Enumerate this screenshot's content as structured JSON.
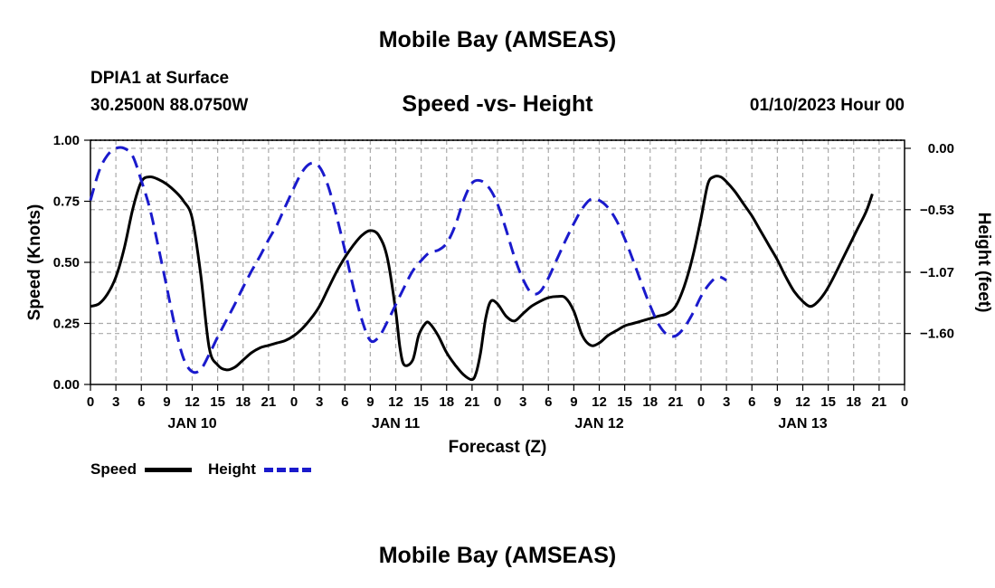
{
  "header": {
    "title": "Mobile Bay (AMSEAS)",
    "station": "DPIA1 at Surface",
    "coords": "30.2500N  88.0750W",
    "subtitle": "Speed -vs- Height",
    "date": "01/10/2023 Hour 00"
  },
  "footer": {
    "title": "Mobile Bay (AMSEAS)"
  },
  "legend": {
    "speed_label": "Speed",
    "height_label": "Height"
  },
  "colors": {
    "speed": "#000000",
    "height": "#1a1acc",
    "grid": "#aaaaaa"
  },
  "chart_data": {
    "type": "line",
    "title": "Speed -vs- Height",
    "xlabel": "Forecast (Z)",
    "ylabel": "Speed (Knots)",
    "y2label": "Height (feet)",
    "x_unit": "hours from 01/10/2023 00Z",
    "xlim": [
      0,
      96
    ],
    "ylim": [
      0,
      1.0
    ],
    "y2lim": [
      -2.04,
      0.07
    ],
    "x_ticks": [
      0,
      3,
      6,
      9,
      12,
      15,
      18,
      21,
      24,
      27,
      30,
      33,
      36,
      39,
      42,
      45,
      48,
      51,
      54,
      57,
      60,
      63,
      66,
      69,
      72,
      75,
      78,
      81,
      84,
      87,
      90,
      93,
      96
    ],
    "x_tick_labels": [
      "0",
      "3",
      "6",
      "9",
      "12",
      "15",
      "18",
      "21",
      "0",
      "3",
      "6",
      "9",
      "12",
      "15",
      "18",
      "21",
      "0",
      "3",
      "6",
      "9",
      "12",
      "15",
      "18",
      "21",
      "0",
      "3",
      "6",
      "9",
      "12",
      "15",
      "18",
      "21",
      "0"
    ],
    "day_labels": [
      {
        "label": "JAN 10",
        "x": 12
      },
      {
        "label": "JAN 11",
        "x": 36
      },
      {
        "label": "JAN 12",
        "x": 60
      },
      {
        "label": "JAN 13",
        "x": 84
      }
    ],
    "y_ticks": [
      0.0,
      0.25,
      0.5,
      0.75,
      1.0
    ],
    "y_tick_labels": [
      "0.00",
      "0.25",
      "0.50",
      "0.75",
      "1.00"
    ],
    "y2_ticks": [
      0.0,
      -0.53,
      -1.07,
      -1.6
    ],
    "y2_tick_labels": [
      "0.00",
      "−0.53",
      "−1.07",
      "−1.60"
    ],
    "grid": true,
    "series": [
      {
        "name": "Speed",
        "axis": "left",
        "style": "solid",
        "points": [
          [
            0,
            0.32
          ],
          [
            1,
            0.33
          ],
          [
            2,
            0.37
          ],
          [
            3,
            0.44
          ],
          [
            4,
            0.56
          ],
          [
            5,
            0.72
          ],
          [
            6,
            0.83
          ],
          [
            7,
            0.85
          ],
          [
            8,
            0.84
          ],
          [
            9,
            0.82
          ],
          [
            10,
            0.79
          ],
          [
            11,
            0.75
          ],
          [
            12,
            0.68
          ],
          [
            13,
            0.45
          ],
          [
            14,
            0.15
          ],
          [
            15,
            0.08
          ],
          [
            16,
            0.06
          ],
          [
            17,
            0.07
          ],
          [
            18,
            0.1
          ],
          [
            19,
            0.13
          ],
          [
            20,
            0.15
          ],
          [
            21,
            0.16
          ],
          [
            22,
            0.17
          ],
          [
            23,
            0.18
          ],
          [
            24,
            0.2
          ],
          [
            25,
            0.23
          ],
          [
            26,
            0.27
          ],
          [
            27,
            0.32
          ],
          [
            28,
            0.39
          ],
          [
            29,
            0.46
          ],
          [
            30,
            0.52
          ],
          [
            31,
            0.57
          ],
          [
            32,
            0.61
          ],
          [
            33,
            0.63
          ],
          [
            34,
            0.61
          ],
          [
            35,
            0.52
          ],
          [
            36,
            0.3
          ],
          [
            36.5,
            0.15
          ],
          [
            37,
            0.08
          ],
          [
            38,
            0.1
          ],
          [
            38.7,
            0.2
          ],
          [
            39.5,
            0.25
          ],
          [
            40,
            0.25
          ],
          [
            41,
            0.2
          ],
          [
            42,
            0.13
          ],
          [
            43,
            0.08
          ],
          [
            44,
            0.04
          ],
          [
            45,
            0.02
          ],
          [
            45.5,
            0.05
          ],
          [
            46,
            0.13
          ],
          [
            46.6,
            0.27
          ],
          [
            47.2,
            0.34
          ],
          [
            48,
            0.33
          ],
          [
            49,
            0.28
          ],
          [
            50,
            0.26
          ],
          [
            51,
            0.29
          ],
          [
            52,
            0.32
          ],
          [
            53,
            0.34
          ],
          [
            54,
            0.355
          ],
          [
            55,
            0.36
          ],
          [
            56,
            0.355
          ],
          [
            57,
            0.3
          ],
          [
            58,
            0.2
          ],
          [
            59,
            0.16
          ],
          [
            60,
            0.17
          ],
          [
            61,
            0.2
          ],
          [
            62,
            0.22
          ],
          [
            63,
            0.24
          ],
          [
            64,
            0.25
          ],
          [
            65,
            0.26
          ],
          [
            66,
            0.27
          ],
          [
            67,
            0.28
          ],
          [
            68,
            0.29
          ],
          [
            69,
            0.32
          ],
          [
            70,
            0.4
          ],
          [
            71,
            0.52
          ],
          [
            72,
            0.68
          ],
          [
            72.8,
            0.82
          ],
          [
            73.5,
            0.85
          ],
          [
            74.3,
            0.85
          ],
          [
            75,
            0.83
          ],
          [
            76,
            0.79
          ],
          [
            77,
            0.74
          ],
          [
            78,
            0.69
          ],
          [
            79,
            0.63
          ],
          [
            80,
            0.57
          ],
          [
            81,
            0.51
          ],
          [
            82,
            0.44
          ],
          [
            83,
            0.38
          ],
          [
            84,
            0.34
          ],
          [
            84.8,
            0.32
          ],
          [
            85.5,
            0.33
          ],
          [
            86.5,
            0.37
          ],
          [
            87.5,
            0.43
          ],
          [
            88.5,
            0.5
          ],
          [
            89.5,
            0.57
          ],
          [
            90.5,
            0.64
          ],
          [
            91.5,
            0.71
          ],
          [
            92.2,
            0.78
          ]
        ]
      },
      {
        "name": "Height",
        "axis": "right",
        "style": "dashed",
        "points": [
          [
            0,
            -0.45
          ],
          [
            1,
            -0.2
          ],
          [
            2,
            -0.06
          ],
          [
            3,
            0.0
          ],
          [
            4,
            0.0
          ],
          [
            5,
            -0.07
          ],
          [
            6,
            -0.28
          ],
          [
            7,
            -0.52
          ],
          [
            8,
            -0.85
          ],
          [
            9,
            -1.2
          ],
          [
            10,
            -1.55
          ],
          [
            11,
            -1.82
          ],
          [
            12,
            -1.93
          ],
          [
            13,
            -1.91
          ],
          [
            14,
            -1.78
          ],
          [
            15,
            -1.63
          ],
          [
            16,
            -1.49
          ],
          [
            17,
            -1.35
          ],
          [
            18,
            -1.2
          ],
          [
            19,
            -1.06
          ],
          [
            20,
            -0.93
          ],
          [
            21,
            -0.79
          ],
          [
            22,
            -0.66
          ],
          [
            23,
            -0.5
          ],
          [
            24,
            -0.34
          ],
          [
            25,
            -0.2
          ],
          [
            26,
            -0.13
          ],
          [
            27,
            -0.16
          ],
          [
            28,
            -0.32
          ],
          [
            29,
            -0.58
          ],
          [
            30,
            -0.88
          ],
          [
            31,
            -1.2
          ],
          [
            32,
            -1.48
          ],
          [
            33,
            -1.66
          ],
          [
            34,
            -1.63
          ],
          [
            35,
            -1.5
          ],
          [
            36,
            -1.35
          ],
          [
            37,
            -1.2
          ],
          [
            38,
            -1.06
          ],
          [
            39,
            -0.97
          ],
          [
            40,
            -0.9
          ],
          [
            41,
            -0.88
          ],
          [
            42,
            -0.82
          ],
          [
            43,
            -0.67
          ],
          [
            44,
            -0.45
          ],
          [
            45,
            -0.3
          ],
          [
            46,
            -0.28
          ],
          [
            47,
            -0.34
          ],
          [
            48,
            -0.48
          ],
          [
            49,
            -0.7
          ],
          [
            50,
            -0.94
          ],
          [
            51,
            -1.13
          ],
          [
            52,
            -1.25
          ],
          [
            53,
            -1.24
          ],
          [
            54,
            -1.12
          ],
          [
            55,
            -0.96
          ],
          [
            56,
            -0.8
          ],
          [
            57,
            -0.65
          ],
          [
            58,
            -0.52
          ],
          [
            59,
            -0.44
          ],
          [
            60,
            -0.45
          ],
          [
            61,
            -0.51
          ],
          [
            62,
            -0.62
          ],
          [
            63,
            -0.78
          ],
          [
            64,
            -0.97
          ],
          [
            65,
            -1.17
          ],
          [
            66,
            -1.36
          ],
          [
            67,
            -1.52
          ],
          [
            68,
            -1.61
          ],
          [
            69,
            -1.62
          ],
          [
            70,
            -1.55
          ],
          [
            71,
            -1.43
          ],
          [
            72,
            -1.28
          ],
          [
            73,
            -1.17
          ],
          [
            74,
            -1.11
          ],
          [
            75,
            -1.14
          ]
        ]
      }
    ]
  }
}
